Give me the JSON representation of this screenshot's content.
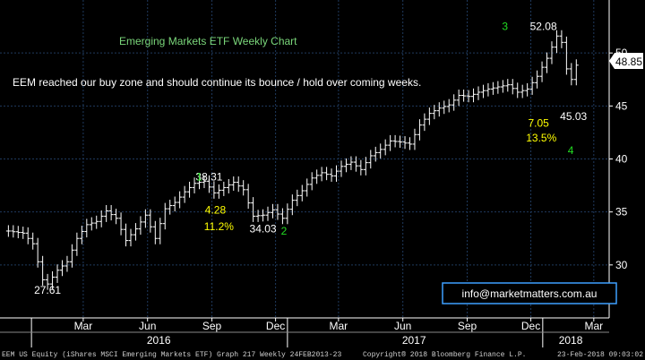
{
  "chart_data": {
    "type": "ohlc",
    "title": "Emerging Markets ETF Weekly Chart",
    "commentary": "EEM reached our buy zone and should continue its bounce / hold over coming weeks.",
    "ylim": [
      25,
      55
    ],
    "y_ticks": [
      30,
      35,
      40,
      45,
      50
    ],
    "last_price": "48.85",
    "x_month_ticks": [
      {
        "label": "Mar",
        "date": "2016-03-15"
      },
      {
        "label": "Jun",
        "date": "2016-06-15"
      },
      {
        "label": "Sep",
        "date": "2016-09-15"
      },
      {
        "label": "Dec",
        "date": "2016-12-15"
      },
      {
        "label": "Mar",
        "date": "2017-03-15"
      },
      {
        "label": "Jun",
        "date": "2017-06-15"
      },
      {
        "label": "Sep",
        "date": "2017-09-15"
      },
      {
        "label": "Dec",
        "date": "2017-12-15"
      },
      {
        "label": "Mar",
        "date": "2018-03-15"
      }
    ],
    "x_year_labels": [
      {
        "label": "2016",
        "date": "2016-07-01"
      },
      {
        "label": "2017",
        "date": "2017-07-01"
      },
      {
        "label": "2018",
        "date": "2018-02-10"
      }
    ],
    "year_separators": [
      "2016-01-01",
      "2017-01-01",
      "2018-01-01"
    ],
    "close_series": [
      [
        "2015-11-29",
        33.2
      ],
      [
        "2015-12-20",
        33.0
      ],
      [
        "2016-01-03",
        32.0
      ],
      [
        "2016-01-17",
        28.6
      ],
      [
        "2016-01-24",
        28.2
      ],
      [
        "2016-02-07",
        29.5
      ],
      [
        "2016-02-21",
        30.3
      ],
      [
        "2016-03-06",
        32.5
      ],
      [
        "2016-03-20",
        33.8
      ],
      [
        "2016-04-03",
        34.1
      ],
      [
        "2016-04-17",
        35.1
      ],
      [
        "2016-05-01",
        34.4
      ],
      [
        "2016-05-15",
        32.3
      ],
      [
        "2016-05-29",
        33.4
      ],
      [
        "2016-06-12",
        34.7
      ],
      [
        "2016-06-26",
        32.5
      ],
      [
        "2016-07-10",
        35.3
      ],
      [
        "2016-07-24",
        35.9
      ],
      [
        "2016-08-07",
        36.9
      ],
      [
        "2016-08-21",
        37.7
      ],
      [
        "2016-09-04",
        37.9
      ],
      [
        "2016-09-18",
        36.8
      ],
      [
        "2016-10-02",
        37.3
      ],
      [
        "2016-10-16",
        37.8
      ],
      [
        "2016-10-30",
        37.1
      ],
      [
        "2016-11-13",
        34.6
      ],
      [
        "2016-11-27",
        34.7
      ],
      [
        "2016-12-11",
        35.2
      ],
      [
        "2016-12-25",
        34.4
      ],
      [
        "2017-01-08",
        36.1
      ],
      [
        "2017-01-22",
        37.0
      ],
      [
        "2017-02-05",
        38.2
      ],
      [
        "2017-02-19",
        38.7
      ],
      [
        "2017-03-05",
        38.4
      ],
      [
        "2017-03-19",
        39.3
      ],
      [
        "2017-04-02",
        39.7
      ],
      [
        "2017-04-16",
        39.0
      ],
      [
        "2017-04-30",
        40.3
      ],
      [
        "2017-05-14",
        40.9
      ],
      [
        "2017-05-28",
        41.7
      ],
      [
        "2017-06-11",
        41.6
      ],
      [
        "2017-06-25",
        41.4
      ],
      [
        "2017-07-09",
        43.2
      ],
      [
        "2017-07-23",
        44.3
      ],
      [
        "2017-08-06",
        44.8
      ],
      [
        "2017-08-20",
        45.1
      ],
      [
        "2017-09-03",
        46.0
      ],
      [
        "2017-09-17",
        45.9
      ],
      [
        "2017-10-01",
        46.3
      ],
      [
        "2017-10-15",
        46.6
      ],
      [
        "2017-10-29",
        46.8
      ],
      [
        "2017-11-12",
        47.0
      ],
      [
        "2017-11-26",
        46.3
      ],
      [
        "2017-12-10",
        46.6
      ],
      [
        "2017-12-24",
        47.8
      ],
      [
        "2018-01-07",
        49.5
      ],
      [
        "2018-01-21",
        51.6
      ],
      [
        "2018-01-28",
        51.0
      ],
      [
        "2018-02-04",
        48.5
      ],
      [
        "2018-02-11",
        47.5
      ],
      [
        "2018-02-18",
        48.85
      ]
    ],
    "annotations": [
      {
        "text": "27.61",
        "color": "#ffffff",
        "date": "2016-01-24",
        "y": 27.61
      },
      {
        "text": "38.31",
        "color": "#ffffff",
        "date": "2016-09-11",
        "y": 38.31
      },
      {
        "text": "1",
        "color": "#22dd22",
        "date": "2016-08-28",
        "y": 38.31
      },
      {
        "text": "4.28",
        "color": "#ffff00",
        "date": "2016-09-20",
        "y": 35.2
      },
      {
        "text": "11.2%",
        "color": "#ffff00",
        "date": "2016-09-25",
        "y": 33.6
      },
      {
        "text": "34.03",
        "color": "#ffffff",
        "date": "2016-11-27",
        "y": 33.4
      },
      {
        "text": "2",
        "color": "#22dd22",
        "date": "2016-12-27",
        "y": 33.2
      },
      {
        "text": "3",
        "color": "#22dd22",
        "date": "2017-11-08",
        "y": 52.5
      },
      {
        "text": "52.08",
        "color": "#ffffff",
        "date": "2018-01-02",
        "y": 52.5
      },
      {
        "text": "7.05",
        "color": "#ffff00",
        "date": "2017-12-26",
        "y": 43.4
      },
      {
        "text": "13.5%",
        "color": "#ffff00",
        "date": "2017-12-30",
        "y": 42.0
      },
      {
        "text": "45.03",
        "color": "#ffffff",
        "date": "2018-02-14",
        "y": 44.0
      },
      {
        "text": "4",
        "color": "#22dd22",
        "date": "2018-02-10",
        "y": 40.8
      }
    ]
  },
  "branding": {
    "email": "info@marketmatters.com.au",
    "footer_left": "EEM US Equity (iShares MSCI Emerging Markets ETF) Graph 217  Weekly 24FEB2013-23",
    "footer_center": "Copyright® 2018 Bloomberg Finance L.P.",
    "footer_right": "23-Feb-2018 09:03:02"
  },
  "colors": {
    "background": "#000000",
    "grid": "#1f3a5e",
    "bars": "#ffffff",
    "title": "#7ad67a",
    "last_price_box": "#ffffff",
    "email_box_border": "#3ea0ff"
  }
}
